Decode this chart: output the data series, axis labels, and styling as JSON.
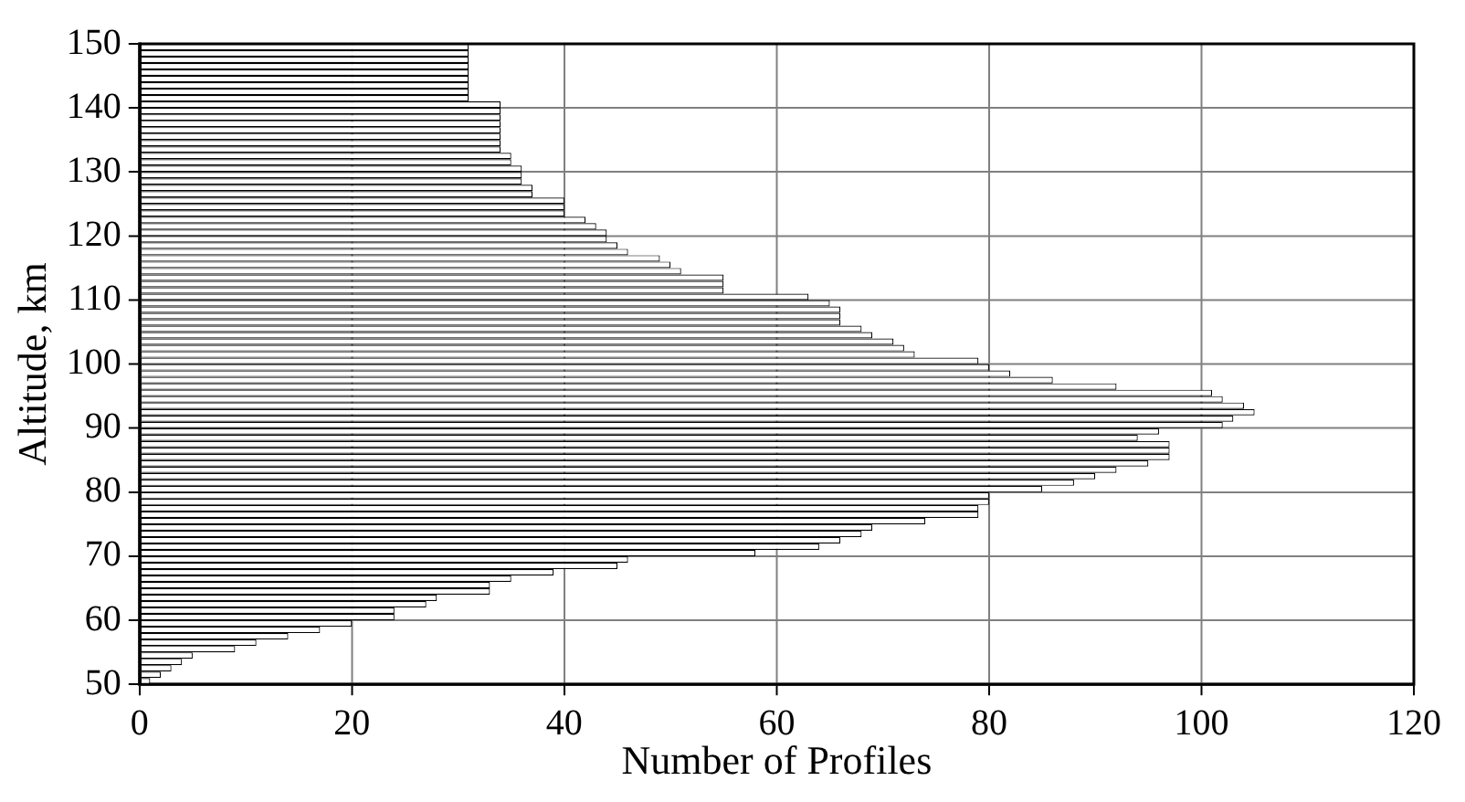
{
  "chart_data": {
    "type": "histogram",
    "orientation": "horizontal",
    "xlabel": "Number of Profiles",
    "ylabel": "Altitude, km",
    "bins": [
      50,
      51,
      52,
      53,
      54,
      55,
      56,
      57,
      58,
      59,
      60,
      61,
      62,
      63,
      64,
      65,
      66,
      67,
      68,
      69,
      70,
      71,
      72,
      73,
      74,
      75,
      76,
      77,
      78,
      79,
      80,
      81,
      82,
      83,
      84,
      85,
      86,
      87,
      88,
      89,
      90,
      91,
      92,
      93,
      94,
      95,
      96,
      97,
      98,
      99,
      100,
      101,
      102,
      103,
      104,
      105,
      106,
      107,
      108,
      109,
      110,
      111,
      112,
      113,
      114,
      115,
      116,
      117,
      118,
      119,
      120,
      121,
      122,
      123,
      124,
      125,
      126,
      127,
      128,
      129,
      130,
      131,
      132,
      133,
      134,
      135,
      136,
      137,
      138,
      139,
      140,
      141,
      142,
      143,
      144,
      145,
      146,
      147,
      148,
      149,
      150
    ],
    "values": [
      1,
      2,
      3,
      4,
      5,
      9,
      11,
      14,
      17,
      20,
      24,
      24,
      27,
      28,
      33,
      33,
      35,
      39,
      45,
      46,
      58,
      64,
      66,
      68,
      69,
      74,
      79,
      79,
      80,
      80,
      85,
      88,
      90,
      92,
      95,
      97,
      97,
      97,
      94,
      96,
      102,
      103,
      105,
      104,
      102,
      101,
      92,
      86,
      82,
      80,
      79,
      73,
      72,
      71,
      69,
      68,
      66,
      66,
      66,
      65,
      63,
      55,
      55,
      55,
      51,
      50,
      49,
      46,
      45,
      44,
      44,
      43,
      42,
      40,
      40,
      40,
      37,
      37,
      36,
      36,
      36,
      35,
      35,
      34,
      34,
      34,
      34,
      34,
      34,
      34,
      34,
      31,
      31,
      31,
      31,
      31,
      31,
      31,
      31,
      31
    ],
    "color": "#ffffff",
    "xlim": [
      0,
      120
    ],
    "xticks": [
      0,
      20,
      40,
      60,
      80,
      100,
      120
    ],
    "ylim": [
      50,
      150
    ],
    "yticks": [
      50,
      60,
      70,
      80,
      90,
      100,
      110,
      120,
      130,
      140,
      150
    ],
    "grid": true
  }
}
